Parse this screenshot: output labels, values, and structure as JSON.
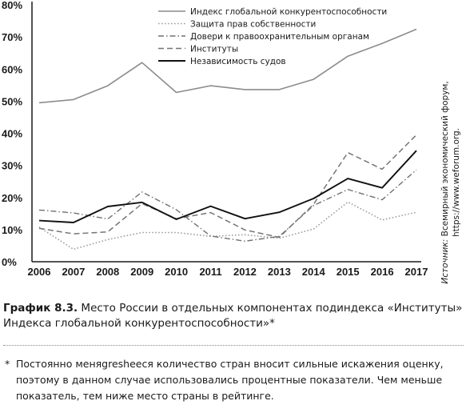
{
  "chart_data": {
    "type": "line",
    "categories": [
      "2006",
      "2007",
      "2008",
      "2009",
      "2010",
      "2011",
      "2012",
      "2013",
      "2014",
      "2015",
      "2016",
      "2017"
    ],
    "ylim": [
      0,
      80
    ],
    "yticks": [
      0,
      10,
      20,
      30,
      40,
      50,
      60,
      70,
      80
    ],
    "ytick_labels": [
      "0%",
      "10%",
      "20%",
      "30%",
      "40%",
      "50%",
      "60%",
      "70%",
      "80%"
    ],
    "grid": false,
    "legend_position": "top-center",
    "series": [
      {
        "name": "Индекс глобальной конкурентоспособности",
        "style": "solid",
        "color": "#8c8c8c",
        "values": [
          49.5,
          50.5,
          54.8,
          62.0,
          52.7,
          54.8,
          53.6,
          53.6,
          56.8,
          64.0,
          68.0,
          72.4
        ]
      },
      {
        "name": "Защита прав собственности",
        "style": "dotted",
        "color": "#999999",
        "values": [
          10.8,
          3.9,
          6.9,
          9.1,
          9.1,
          7.9,
          8.4,
          7.3,
          10.2,
          18.6,
          13.0,
          15.4
        ]
      },
      {
        "name": "Довери к правоохранительным органам",
        "style": "dashdot",
        "color": "#707070",
        "values": [
          16.1,
          15.2,
          13.3,
          21.7,
          16.2,
          8.0,
          6.4,
          7.9,
          17.5,
          22.5,
          19.3,
          28.6
        ]
      },
      {
        "name": "Институты",
        "style": "dashed",
        "color": "#757575",
        "values": [
          10.4,
          8.7,
          9.3,
          18.1,
          13.4,
          15.3,
          9.9,
          7.6,
          17.9,
          34.0,
          28.8,
          39.5
        ]
      },
      {
        "name": "Независимость судов",
        "style": "solid-bold",
        "color": "#111111",
        "values": [
          12.8,
          12.2,
          17.2,
          18.5,
          13.2,
          17.3,
          13.4,
          15.4,
          19.7,
          25.9,
          23.0,
          34.6
        ]
      }
    ]
  },
  "source_note": {
    "label": "Источник:",
    "line1_rest": " Всемирный экономический форум,",
    "line2": "https://www.weforum.org."
  },
  "caption": {
    "number": "График 8.3.",
    "text": " Место России в отдельных компонентах подиндекса «Институты» Индекса глобальной конкурентоспособности»*"
  },
  "footnote": {
    "mark": "*",
    "text": "Постоянно меняgreshееся количество стран вносит сильные искажения оценку, поэтому в данном случае использовались процентные показатели. Чем меньше показатель, тем ниже место страны в рейтинге."
  }
}
